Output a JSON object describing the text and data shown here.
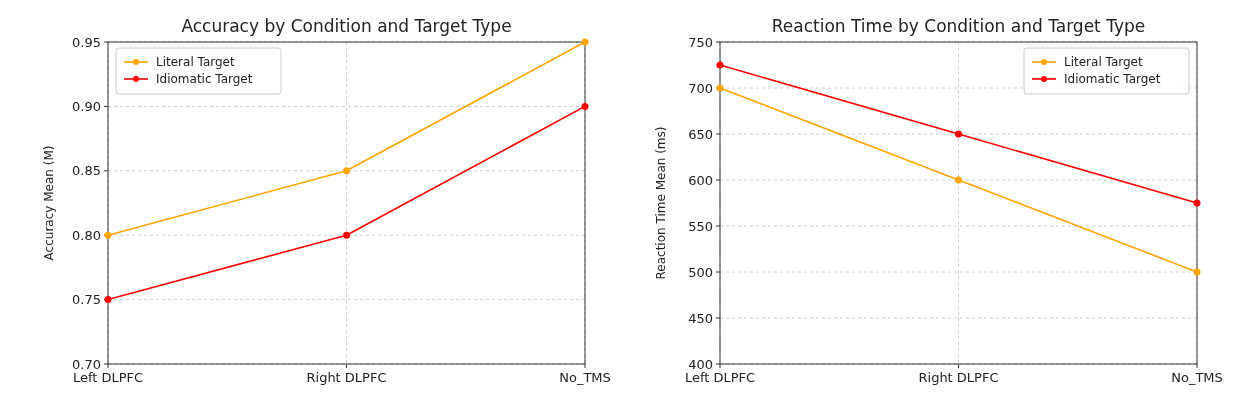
{
  "chart_data": [
    {
      "type": "line",
      "title": "Accuracy by Condition and Target Type",
      "ylabel": "Accuracy Mean (M)",
      "categories": [
        "Left DLPFC",
        "Right DLPFC",
        "No_TMS"
      ],
      "series": [
        {
          "name": "Literal Target",
          "color": "#ffa500",
          "values": [
            0.8,
            0.85,
            0.95
          ]
        },
        {
          "name": "Idiomatic Target",
          "color": "#ff0000",
          "values": [
            0.75,
            0.8,
            0.9
          ]
        }
      ],
      "ylim": [
        0.7,
        0.95
      ],
      "yticks": [
        {
          "value": 0.7,
          "label": "0.70"
        },
        {
          "value": 0.75,
          "label": "0.75"
        },
        {
          "value": 0.8,
          "label": "0.80"
        },
        {
          "value": 0.85,
          "label": "0.85"
        },
        {
          "value": 0.9,
          "label": "0.90"
        },
        {
          "value": 0.95,
          "label": "0.95"
        }
      ],
      "grid": true,
      "legend": "top left",
      "marker": "circle"
    },
    {
      "type": "line",
      "title": "Reaction Time by Condition and Target Type",
      "ylabel": "Reaction Time Mean (ms)",
      "categories": [
        "Left DLPFC",
        "Right DLPFC",
        "No_TMS"
      ],
      "series": [
        {
          "name": "Literal Target",
          "color": "#ffa500",
          "values": [
            700,
            600,
            500
          ]
        },
        {
          "name": "Idiomatic Target",
          "color": "#ff0000",
          "values": [
            725,
            650,
            575
          ]
        }
      ],
      "ylim": [
        400,
        750
      ],
      "yticks": [
        400,
        450,
        500,
        550,
        600,
        650,
        700,
        750
      ],
      "grid": true,
      "legend": "top right",
      "marker": "circle"
    }
  ]
}
